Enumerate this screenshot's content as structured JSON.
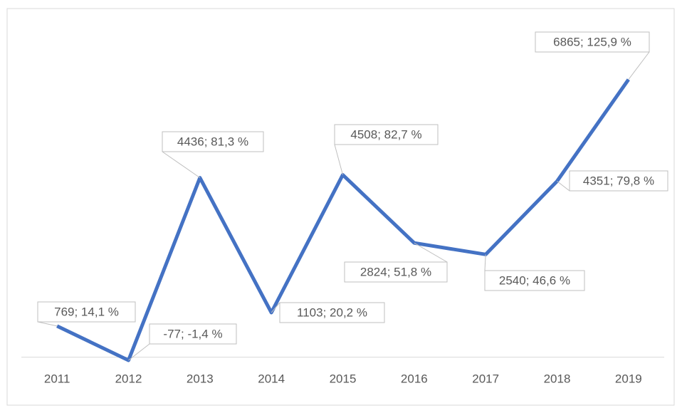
{
  "chart_data": {
    "type": "line",
    "categories": [
      "2011",
      "2012",
      "2013",
      "2014",
      "2015",
      "2016",
      "2017",
      "2018",
      "2019"
    ],
    "series": [
      {
        "color": "#4472c4",
        "values": [
          769,
          -77,
          4436,
          1103,
          4508,
          2824,
          2540,
          4351,
          6865
        ],
        "value_labels": [
          "769; 14,1 %",
          "-77; -1,4 %",
          "4436; 81,3 %",
          "1103; 20,2 %",
          "4508; 82,7 %",
          "2824; 51,8 %",
          "2540; 46,6 %",
          "4351; 79,8 %",
          "6865; 125,9 %"
        ]
      }
    ],
    "ylim": [
      -500,
      7000
    ]
  }
}
